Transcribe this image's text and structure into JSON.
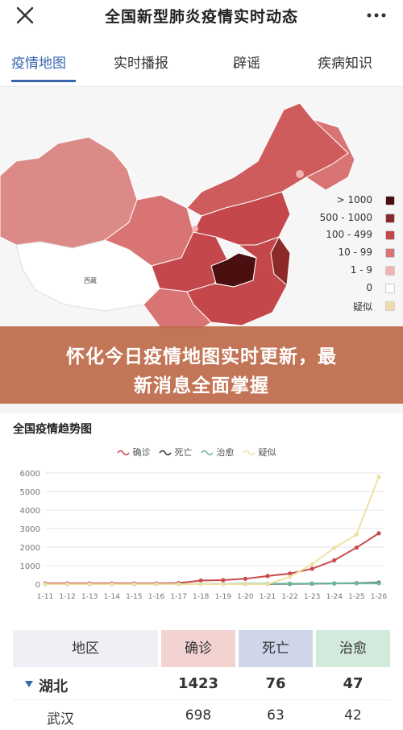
{
  "header": {
    "title": "全国新型肺炎疫情实时动态"
  },
  "tabs": [
    {
      "label": "疫情地图"
    },
    {
      "label": "实时播报"
    },
    {
      "label": "辟谣"
    },
    {
      "label": "疾病知识"
    }
  ],
  "map": {
    "province_labels": [
      "西藏"
    ],
    "legend": [
      {
        "label": "> 1000",
        "color": "#4a1010"
      },
      {
        "label": "500 - 1000",
        "color": "#8c2a2a"
      },
      {
        "label": "100 - 499",
        "color": "#c4484b"
      },
      {
        "label": "10 - 99",
        "color": "#d97475"
      },
      {
        "label": "1 - 9",
        "color": "#f1b4b0"
      },
      {
        "label": "0",
        "color": "#ffffff"
      },
      {
        "label": "疑似",
        "color": "#f0dca8"
      }
    ]
  },
  "banner": {
    "line1": "怀化今日疫情地图实时更新，最",
    "line2": "新消息全面掌握"
  },
  "trend": {
    "title": "全国疫情趋势图",
    "legend": [
      {
        "label": "确诊",
        "color": "#c9484c"
      },
      {
        "label": "死亡",
        "color": "#333333"
      },
      {
        "label": "治愈",
        "color": "#6bb59b"
      },
      {
        "label": "疑似",
        "color": "#ede2a6"
      }
    ]
  },
  "chart_data": {
    "type": "line",
    "title": "全国疫情趋势图",
    "categories": [
      "1-11",
      "1-12",
      "1-13",
      "1-14",
      "1-15",
      "1-16",
      "1-17",
      "1-18",
      "1-19",
      "1-20",
      "1-21",
      "1-22",
      "1-23",
      "1-24",
      "1-25",
      "1-26"
    ],
    "ylim": [
      0,
      6000
    ],
    "yticks": [
      0,
      1000,
      2000,
      3000,
      4000,
      5000,
      6000
    ],
    "grid": true,
    "legend_position": "top-center",
    "series": [
      {
        "name": "确诊",
        "color": "#c9484c",
        "values": [
          41,
          41,
          41,
          41,
          41,
          45,
          62,
          198,
          218,
          291,
          440,
          571,
          830,
          1287,
          1975,
          2744
        ]
      },
      {
        "name": "死亡",
        "color": "#333333",
        "values": [
          1,
          1,
          1,
          1,
          2,
          2,
          2,
          3,
          3,
          6,
          9,
          17,
          25,
          41,
          56,
          80
        ]
      },
      {
        "name": "治愈",
        "color": "#6bb59b",
        "values": [
          0,
          0,
          0,
          0,
          5,
          5,
          5,
          5,
          5,
          25,
          25,
          28,
          34,
          38,
          49,
          51
        ]
      },
      {
        "name": "疑似",
        "color": "#ede2a6",
        "values": [
          0,
          0,
          0,
          0,
          0,
          0,
          0,
          0,
          0,
          0,
          0,
          393,
          1072,
          1965,
          2684,
          5794
        ]
      }
    ]
  },
  "table": {
    "headers": [
      "地区",
      "确诊",
      "死亡",
      "治愈"
    ],
    "header_colors": [
      "#eef0f6",
      "#f3d2d2",
      "#cfd6ea",
      "#d2eadc"
    ],
    "rows": [
      {
        "region": "湖北",
        "confirmed": "1423",
        "dead": "76",
        "cured": "47"
      },
      {
        "region": "武汉",
        "confirmed": "698",
        "dead": "63",
        "cured": "42"
      }
    ]
  }
}
